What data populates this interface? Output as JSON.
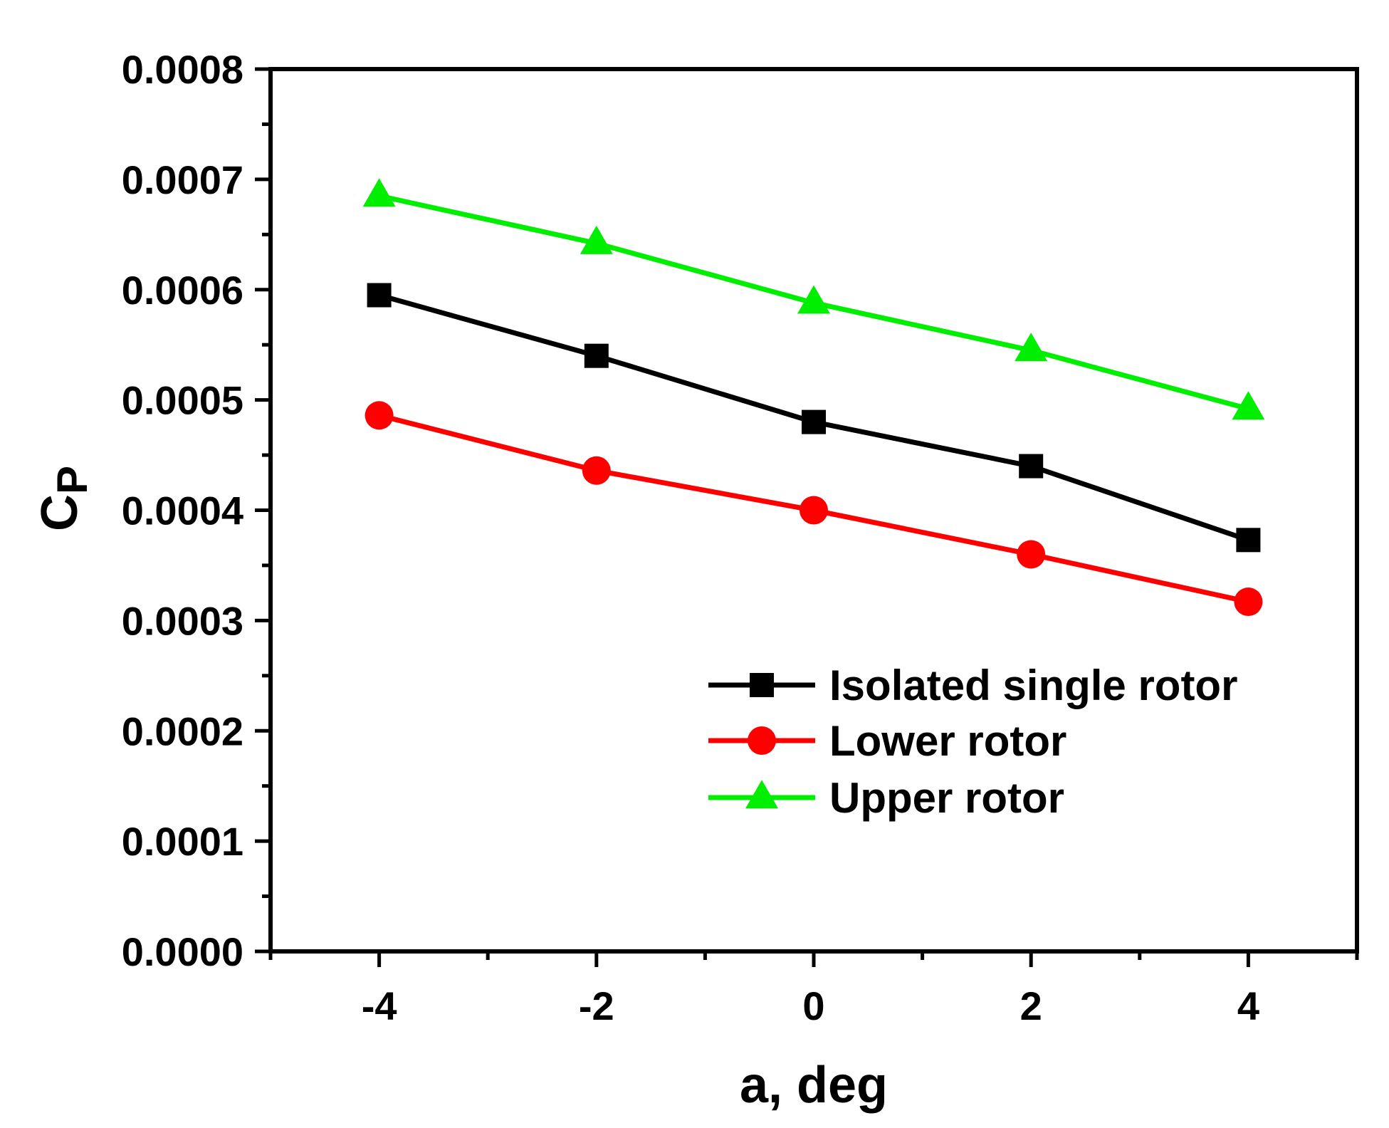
{
  "chart_data": {
    "type": "line",
    "title": "",
    "xlabel": "a, deg",
    "ylabel_main": "C",
    "ylabel_sub": "P",
    "xlim": [
      -5,
      5
    ],
    "ylim": [
      0,
      0.0008
    ],
    "x_ticks": [
      -4,
      -2,
      0,
      2,
      4
    ],
    "x_tick_labels": [
      "-4",
      "-2",
      "0",
      "2",
      "4"
    ],
    "y_ticks": [
      0,
      0.0001,
      0.0002,
      0.0003,
      0.0004,
      0.0005,
      0.0006,
      0.0007,
      0.0008
    ],
    "y_tick_labels": [
      "0.0000",
      "0.0001",
      "0.0002",
      "0.0003",
      "0.0004",
      "0.0005",
      "0.0006",
      "0.0007",
      "0.0008"
    ],
    "grid": false,
    "legend_position": "bottom-right",
    "x": [
      -4,
      -2,
      0,
      2,
      4
    ],
    "series": [
      {
        "name": "Isolated single rotor",
        "color": "#000000",
        "marker": "square",
        "values": [
          0.000595,
          0.00054,
          0.00048,
          0.00044,
          0.000373
        ]
      },
      {
        "name": "Lower rotor",
        "color": "#ff0000",
        "marker": "circle",
        "values": [
          0.000486,
          0.000436,
          0.0004,
          0.00036,
          0.000317
        ]
      },
      {
        "name": "Upper rotor",
        "color": "#00ee00",
        "marker": "triangle",
        "values": [
          0.000685,
          0.000642,
          0.000588,
          0.000545,
          0.000492
        ]
      }
    ]
  }
}
